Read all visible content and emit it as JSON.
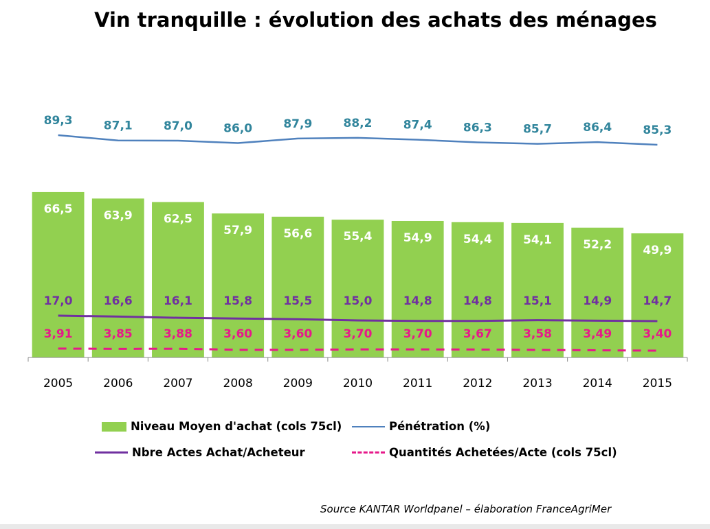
{
  "title": "Vin tranquille : évolution des achats des ménages",
  "source": "Source KANTAR Worldpanel – élaboration FranceAgriMer",
  "colors": {
    "bar": "#92d050",
    "penetration": "#4f81bd",
    "penetration_label": "#31859c",
    "actes": "#7030a0",
    "quantites": "#e6198a"
  },
  "chart_data": {
    "type": "bar",
    "categories": [
      "2005",
      "2006",
      "2007",
      "2008",
      "2009",
      "2010",
      "2011",
      "2012",
      "2013",
      "2014",
      "2015"
    ],
    "series": [
      {
        "name": "Niveau Moyen d'achat (cols 75cl)",
        "kind": "bar",
        "values": [
          66.5,
          63.9,
          62.5,
          57.9,
          56.6,
          55.4,
          54.9,
          54.4,
          54.1,
          52.2,
          49.9
        ],
        "labels": [
          "66,5",
          "63,9",
          "62,5",
          "57,9",
          "56,6",
          "55,4",
          "54,9",
          "54,4",
          "54,1",
          "52,2",
          "49,9"
        ]
      },
      {
        "name": "Pénétration (%)",
        "kind": "line",
        "values": [
          89.3,
          87.1,
          87.0,
          86.0,
          87.9,
          88.2,
          87.4,
          86.3,
          85.7,
          86.4,
          85.3
        ],
        "labels": [
          "89,3",
          "87,1",
          "87,0",
          "86,0",
          "87,9",
          "88,2",
          "87,4",
          "86,3",
          "85,7",
          "86,4",
          "85,3"
        ]
      },
      {
        "name": "Nbre Actes Achat/Acheteur",
        "kind": "line",
        "values": [
          17.0,
          16.6,
          16.1,
          15.8,
          15.5,
          15.0,
          14.8,
          14.8,
          15.1,
          14.9,
          14.7
        ],
        "labels": [
          "17,0",
          "16,6",
          "16,1",
          "15,8",
          "15,5",
          "15,0",
          "14,8",
          "14,8",
          "15,1",
          "14,9",
          "14,7"
        ]
      },
      {
        "name": "Quantités Achetées/Acte (cols 75cl)",
        "kind": "dashed-line",
        "values": [
          3.91,
          3.85,
          3.88,
          3.6,
          3.6,
          3.7,
          3.7,
          3.67,
          3.58,
          3.49,
          3.4
        ],
        "labels": [
          "3,91",
          "3,85",
          "3,88",
          "3,60",
          "3,60",
          "3,70",
          "3,70",
          "3,67",
          "3,58",
          "3,49",
          "3,40"
        ]
      }
    ],
    "legend": "bottom",
    "grid": false
  }
}
